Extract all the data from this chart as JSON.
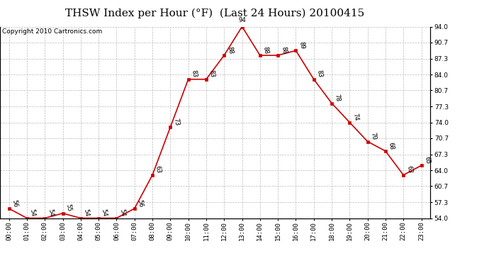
{
  "title": "THSW Index per Hour (°F)  (Last 24 Hours) 20100415",
  "copyright": "Copyright 2010 Cartronics.com",
  "hours": [
    "00:00",
    "01:00",
    "02:00",
    "03:00",
    "04:00",
    "05:00",
    "06:00",
    "07:00",
    "08:00",
    "09:00",
    "10:00",
    "11:00",
    "12:00",
    "13:00",
    "14:00",
    "15:00",
    "16:00",
    "17:00",
    "18:00",
    "19:00",
    "20:00",
    "21:00",
    "22:00",
    "23:00"
  ],
  "values": [
    56,
    54,
    54,
    55,
    54,
    54,
    54,
    56,
    63,
    73,
    83,
    83,
    88,
    94,
    88,
    88,
    89,
    83,
    78,
    74,
    70,
    68,
    63,
    65
  ],
  "line_color": "#cc0000",
  "marker_color": "#cc0000",
  "bg_color": "#ffffff",
  "plot_bg_color": "#ffffff",
  "grid_color": "#bbbbbb",
  "ylim_min": 54.0,
  "ylim_max": 94.0,
  "yticks": [
    54.0,
    57.3,
    60.7,
    64.0,
    67.3,
    70.7,
    74.0,
    77.3,
    80.7,
    84.0,
    87.3,
    90.7,
    94.0
  ],
  "title_fontsize": 11,
  "label_fontsize": 6.5,
  "tick_fontsize": 6.5,
  "copyright_fontsize": 6.5
}
